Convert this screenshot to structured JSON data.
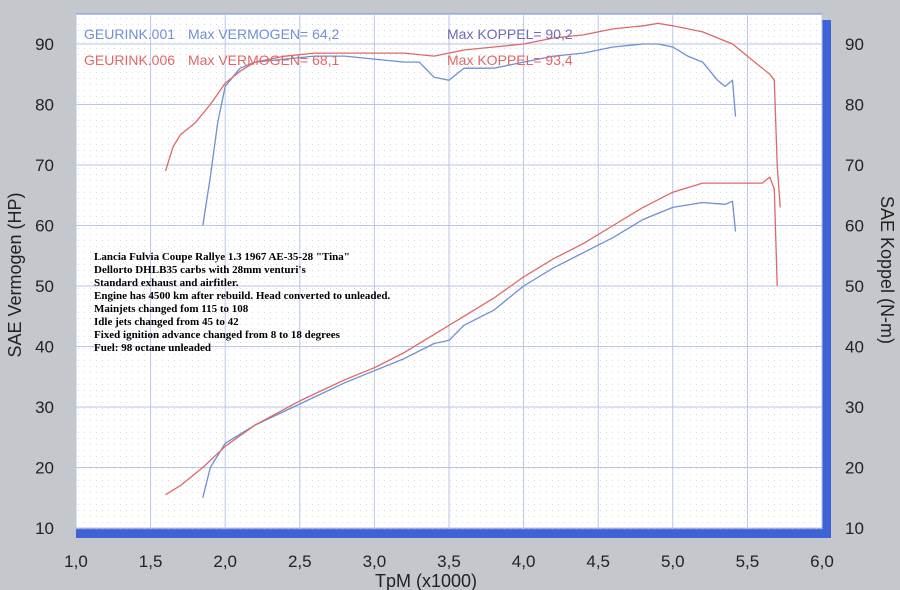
{
  "chart_data": {
    "type": "line",
    "xlabel": "TpM (x1000)",
    "ylabel_left": "SAE Vermogen (HP)",
    "ylabel_right": "SAE Koppel (N-m)",
    "xlim": [
      1.0,
      6.0
    ],
    "ylim": [
      10,
      90
    ],
    "x_ticks": [
      "1,0",
      "1,5",
      "2,0",
      "2,5",
      "3,0",
      "3,5",
      "4,0",
      "4,5",
      "5,0",
      "5,5",
      "6,0"
    ],
    "y_ticks_left": [
      "10",
      "20",
      "30",
      "40",
      "50",
      "60",
      "70",
      "80",
      "90"
    ],
    "y_ticks_right": [
      "10",
      "20",
      "30",
      "40",
      "50",
      "60",
      "70",
      "80",
      "90"
    ],
    "grid": true,
    "legend": [
      {
        "run": "GEURINK.001",
        "power_label": "Max VERMOGEN= 64,2",
        "torque_label": "Max KOPPEL= 90,2",
        "color": "#6f8fd6"
      },
      {
        "run": "GEURINK.006",
        "power_label": "Max VERMOGEN= 68,1",
        "torque_label": "Max KOPPEL= 93,4",
        "color": "#e06767"
      }
    ],
    "annotation": [
      "Lancia Fulvia Coupe Rallye 1.3 1967 AE-35-28 \"Tina\"",
      "Dellorto DHLB35 carbs with 28mm venturi's",
      "Standard exhaust and airfitler.",
      "Engine has 4500 km after rebuild. Head converted to unleaded.",
      "Mainjets changed fom 115 to 108",
      "Idle jets changed from 45 to 42",
      "Fixed ignition advance changed from 8 to 18 degrees",
      "Fuel: 98 octane unleaded"
    ],
    "series": [
      {
        "name": "GEURINK.001",
        "quantity": "power",
        "color": "#6f8fd6",
        "x": [
          1.85,
          1.9,
          2.0,
          2.2,
          2.5,
          2.8,
          3.0,
          3.2,
          3.4,
          3.5,
          3.6,
          3.8,
          4.0,
          4.2,
          4.4,
          4.6,
          4.8,
          5.0,
          5.2,
          5.35,
          5.4,
          5.42
        ],
        "y": [
          15,
          20,
          24,
          27,
          30.5,
          34,
          36,
          38,
          40.5,
          41,
          43.5,
          46,
          50,
          53,
          55.5,
          58,
          61,
          63,
          63.8,
          63.5,
          64,
          59
        ]
      },
      {
        "name": "GEURINK.006",
        "quantity": "power",
        "color": "#e06767",
        "x": [
          1.6,
          1.7,
          1.85,
          2.0,
          2.2,
          2.5,
          2.8,
          3.0,
          3.2,
          3.4,
          3.6,
          3.8,
          4.0,
          4.2,
          4.4,
          4.6,
          4.8,
          5.0,
          5.2,
          5.4,
          5.5,
          5.6,
          5.65,
          5.68,
          5.7
        ],
        "y": [
          15.5,
          17,
          20,
          23.5,
          27,
          31,
          34.5,
          36.5,
          39,
          42,
          45,
          48,
          51.5,
          54.5,
          57,
          60,
          63,
          65.5,
          67,
          67,
          67,
          67,
          68,
          66,
          50
        ]
      },
      {
        "name": "GEURINK.001",
        "quantity": "torque",
        "color": "#6f8fd6",
        "x": [
          1.85,
          1.9,
          1.95,
          2.0,
          2.1,
          2.2,
          2.4,
          2.6,
          2.8,
          3.0,
          3.2,
          3.3,
          3.4,
          3.5,
          3.6,
          3.8,
          4.0,
          4.2,
          4.4,
          4.6,
          4.8,
          4.9,
          5.0,
          5.1,
          5.2,
          5.3,
          5.35,
          5.4,
          5.42
        ],
        "y": [
          60,
          68,
          77,
          83,
          86,
          87,
          87.5,
          88,
          88,
          87.5,
          87,
          87,
          84.5,
          84,
          86,
          86,
          87,
          88,
          88.5,
          89.5,
          90,
          90,
          89.5,
          88,
          87,
          84,
          83,
          84,
          78
        ]
      },
      {
        "name": "GEURINK.006",
        "quantity": "torque",
        "color": "#e06767",
        "x": [
          1.6,
          1.65,
          1.7,
          1.8,
          1.9,
          2.0,
          2.1,
          2.2,
          2.4,
          2.6,
          2.8,
          3.0,
          3.2,
          3.4,
          3.6,
          3.8,
          4.0,
          4.2,
          4.4,
          4.6,
          4.8,
          4.9,
          5.0,
          5.2,
          5.4,
          5.5,
          5.6,
          5.65,
          5.68,
          5.7,
          5.72
        ],
        "y": [
          69,
          73,
          75,
          77,
          80,
          83.5,
          85.5,
          87,
          88,
          88.5,
          88.5,
          88.5,
          88.5,
          88,
          89,
          89.5,
          90,
          91,
          91.5,
          92.5,
          93,
          93.4,
          93,
          92,
          90,
          88,
          86,
          85,
          84,
          70,
          63
        ]
      }
    ]
  }
}
